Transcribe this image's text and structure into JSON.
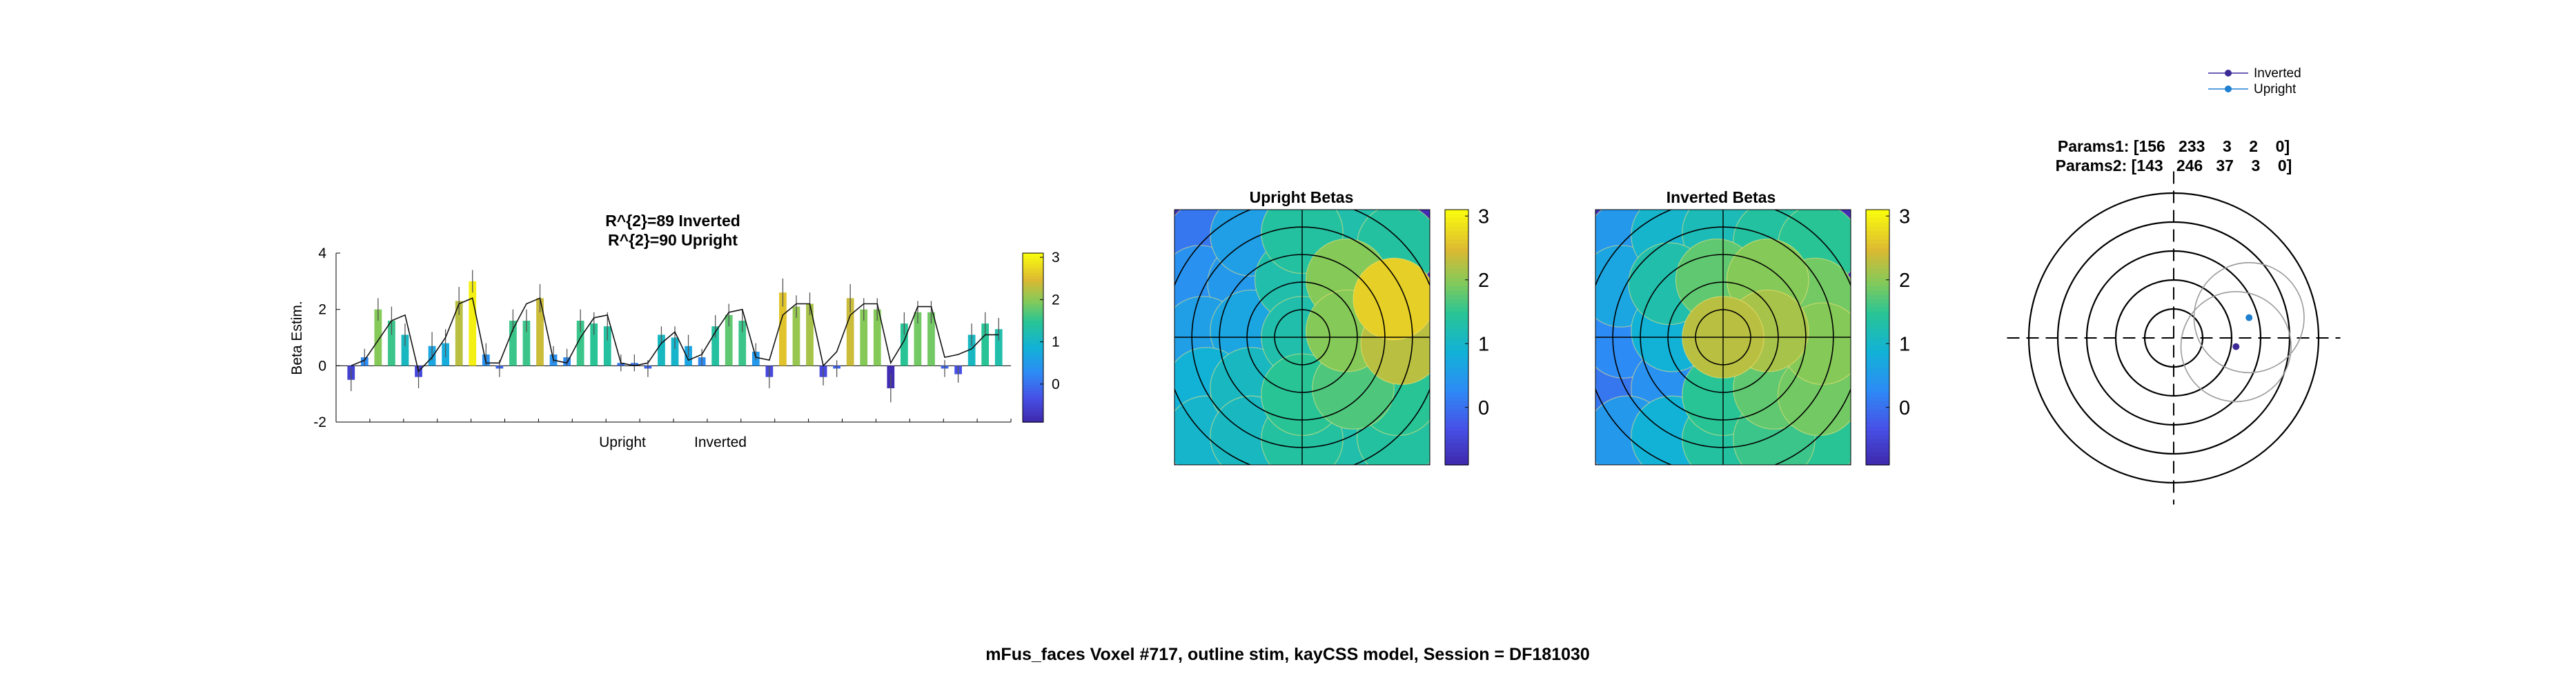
{
  "suptitle": "mFus_faces Voxel #717, outline stim, kayCSS model, Session = DF181030",
  "panels": {
    "bar": {
      "title_line1": "R^{2}=89 Inverted",
      "title_line2": "R^{2}=90 Upright",
      "ylabel": "Beta Estim.",
      "group_labels": [
        "Upright",
        "Inverted"
      ],
      "colorbar_ticks": [
        "3",
        "2",
        "1",
        "0"
      ]
    },
    "upright": {
      "title": "Upright Betas",
      "colorbar_ticks": [
        "3",
        "2",
        "1",
        "0"
      ]
    },
    "inverted": {
      "title": "Inverted Betas",
      "colorbar_ticks": [
        "3",
        "2",
        "1",
        "0"
      ]
    },
    "prf": {
      "params1": "Params1: [156   233    3    2    0]",
      "params2": "Params2: [143   246   37    3    0]",
      "legend": [
        "Inverted",
        "Upright"
      ]
    }
  },
  "colors": {
    "inverted_dot": "#3d2a97",
    "upright_dot": "#1f7fd0",
    "colormap": "parula"
  },
  "chart_data": [
    {
      "type": "bar",
      "title": "R^{2}=89 Inverted R^{2}=90 Upright",
      "ylabel": "Beta Estim.",
      "xlabel": "",
      "ylim": [
        -2,
        4
      ],
      "yticks": [
        -2,
        0,
        2,
        4
      ],
      "group_labels": [
        "Upright",
        "Inverted"
      ],
      "values": [
        -0.5,
        0.3,
        2.0,
        1.6,
        1.1,
        -0.4,
        0.7,
        0.8,
        2.3,
        3.0,
        0.4,
        -0.1,
        1.6,
        1.6,
        2.4,
        0.4,
        0.3,
        1.6,
        1.5,
        1.4,
        0.1,
        0.1,
        -0.1,
        1.1,
        1.0,
        0.7,
        0.3,
        1.4,
        1.8,
        1.6,
        0.5,
        -0.4,
        2.6,
        2.1,
        2.2,
        -0.4,
        -0.1,
        2.4,
        2.0,
        2.0,
        -0.8,
        1.5,
        1.9,
        1.9,
        -0.1,
        -0.3,
        1.1,
        1.5,
        1.3
      ],
      "errors": [
        0.4,
        0.3,
        0.4,
        0.5,
        0.4,
        0.4,
        0.5,
        0.5,
        0.5,
        0.4,
        0.4,
        0.3,
        0.4,
        0.4,
        0.5,
        0.3,
        0.3,
        0.4,
        0.4,
        0.5,
        0.3,
        0.3,
        0.3,
        0.3,
        0.4,
        0.4,
        0.3,
        0.4,
        0.4,
        0.4,
        0.3,
        0.4,
        0.5,
        0.4,
        0.4,
        0.3,
        0.3,
        0.5,
        0.4,
        0.4,
        0.5,
        0.4,
        0.4,
        0.4,
        0.3,
        0.3,
        0.4,
        0.4,
        0.4
      ],
      "fit": [
        0.0,
        0.2,
        0.9,
        1.6,
        1.8,
        -0.2,
        0.3,
        1.0,
        2.2,
        2.4,
        0.1,
        0.1,
        1.3,
        2.2,
        2.4,
        0.2,
        0.1,
        1.0,
        1.7,
        1.8,
        0.1,
        0.0,
        0.1,
        0.8,
        1.2,
        0.2,
        0.4,
        1.2,
        1.9,
        2.0,
        0.3,
        0.2,
        1.8,
        2.2,
        2.2,
        0.0,
        0.5,
        1.8,
        2.2,
        2.2,
        0.1,
        0.9,
        2.1,
        2.1,
        0.3,
        0.4,
        0.6,
        1.1,
        1.1
      ],
      "colorbar": {
        "ticks": [
          0,
          1,
          2,
          3
        ],
        "range": [
          -0.9,
          3.1
        ]
      }
    },
    {
      "type": "heatmap",
      "title": "Upright Betas",
      "colorbar": {
        "ticks": [
          0,
          1,
          2,
          3
        ],
        "range": [
          -0.9,
          3.1
        ]
      },
      "rings": 5,
      "circles": [
        {
          "x": -0.75,
          "y": 0.75,
          "v": 0.1
        },
        {
          "x": -0.4,
          "y": 0.8,
          "v": 0.6
        },
        {
          "x": 0.0,
          "y": 0.82,
          "v": 1.4
        },
        {
          "x": 0.4,
          "y": 0.75,
          "v": 1.3
        },
        {
          "x": 0.75,
          "y": 0.72,
          "v": 1.4
        },
        {
          "x": -0.8,
          "y": 0.4,
          "v": 0.4
        },
        {
          "x": -0.42,
          "y": 0.42,
          "v": 0.5
        },
        {
          "x": -0.05,
          "y": 0.45,
          "v": 1.3
        },
        {
          "x": 0.35,
          "y": 0.45,
          "v": 2.0
        },
        {
          "x": 0.72,
          "y": 0.3,
          "v": 2.7
        },
        {
          "x": -0.78,
          "y": 0.0,
          "v": 0.6
        },
        {
          "x": -0.4,
          "y": 0.05,
          "v": 0.7
        },
        {
          "x": 0.0,
          "y": 0.0,
          "v": 1.3
        },
        {
          "x": 0.35,
          "y": 0.05,
          "v": 2.0
        },
        {
          "x": 0.78,
          "y": -0.05,
          "v": 2.3
        },
        {
          "x": -0.75,
          "y": -0.4,
          "v": 0.9
        },
        {
          "x": -0.4,
          "y": -0.4,
          "v": 1.1
        },
        {
          "x": 0.0,
          "y": -0.45,
          "v": 1.5
        },
        {
          "x": 0.4,
          "y": -0.4,
          "v": 1.7
        },
        {
          "x": 0.75,
          "y": -0.45,
          "v": 1.5
        },
        {
          "x": -0.75,
          "y": -0.78,
          "v": 1.0
        },
        {
          "x": -0.4,
          "y": -0.78,
          "v": 1.1
        },
        {
          "x": 0.0,
          "y": -0.8,
          "v": 1.4
        },
        {
          "x": 0.4,
          "y": -0.8,
          "v": 1.3
        },
        {
          "x": 0.75,
          "y": -0.78,
          "v": 1.4
        }
      ]
    },
    {
      "type": "heatmap",
      "title": "Inverted Betas",
      "colorbar": {
        "ticks": [
          0,
          1,
          2,
          3
        ],
        "range": [
          -0.9,
          3.1
        ]
      },
      "rings": 5,
      "circles": [
        {
          "x": -0.75,
          "y": 0.75,
          "v": 0.5
        },
        {
          "x": -0.4,
          "y": 0.8,
          "v": 1.0
        },
        {
          "x": 0.0,
          "y": 0.82,
          "v": 1.2
        },
        {
          "x": 0.4,
          "y": 0.75,
          "v": 1.4
        },
        {
          "x": 0.75,
          "y": 0.72,
          "v": 1.5
        },
        {
          "x": -0.8,
          "y": 0.4,
          "v": 0.7
        },
        {
          "x": -0.42,
          "y": 0.42,
          "v": 1.3
        },
        {
          "x": -0.05,
          "y": 0.45,
          "v": 1.8
        },
        {
          "x": 0.35,
          "y": 0.45,
          "v": 2.0
        },
        {
          "x": 0.72,
          "y": 0.3,
          "v": 1.9
        },
        {
          "x": -0.78,
          "y": 0.0,
          "v": 0.3
        },
        {
          "x": -0.4,
          "y": 0.05,
          "v": 0.9
        },
        {
          "x": 0.0,
          "y": 0.0,
          "v": 2.3
        },
        {
          "x": 0.35,
          "y": 0.05,
          "v": 2.2
        },
        {
          "x": 0.78,
          "y": -0.05,
          "v": 2.0
        },
        {
          "x": -0.75,
          "y": -0.4,
          "v": 0.1
        },
        {
          "x": -0.4,
          "y": -0.4,
          "v": 0.4
        },
        {
          "x": 0.0,
          "y": -0.45,
          "v": 1.5
        },
        {
          "x": 0.4,
          "y": -0.4,
          "v": 1.8
        },
        {
          "x": 0.75,
          "y": -0.45,
          "v": 1.9
        },
        {
          "x": -0.75,
          "y": -0.78,
          "v": 0.5
        },
        {
          "x": -0.4,
          "y": -0.78,
          "v": 0.9
        },
        {
          "x": 0.0,
          "y": -0.8,
          "v": 1.4
        },
        {
          "x": 0.4,
          "y": -0.8,
          "v": 1.6
        },
        {
          "x": 0.75,
          "y": -0.78,
          "v": 1.5
        }
      ]
    },
    {
      "type": "scatter",
      "title": "Params1: [156 233 3 2 0] Params2: [143 246 37 3 0]",
      "legend": [
        "Inverted",
        "Upright"
      ],
      "legend_position": "top",
      "series": [
        {
          "name": "Inverted",
          "x": [
            0.43
          ],
          "y": [
            -0.06
          ],
          "radius": 0.38
        },
        {
          "name": "Upright",
          "x": [
            0.52
          ],
          "y": [
            0.14
          ],
          "radius": 0.38
        }
      ],
      "rings": [
        0.2,
        0.4,
        0.6,
        0.8,
        1.0
      ]
    }
  ]
}
